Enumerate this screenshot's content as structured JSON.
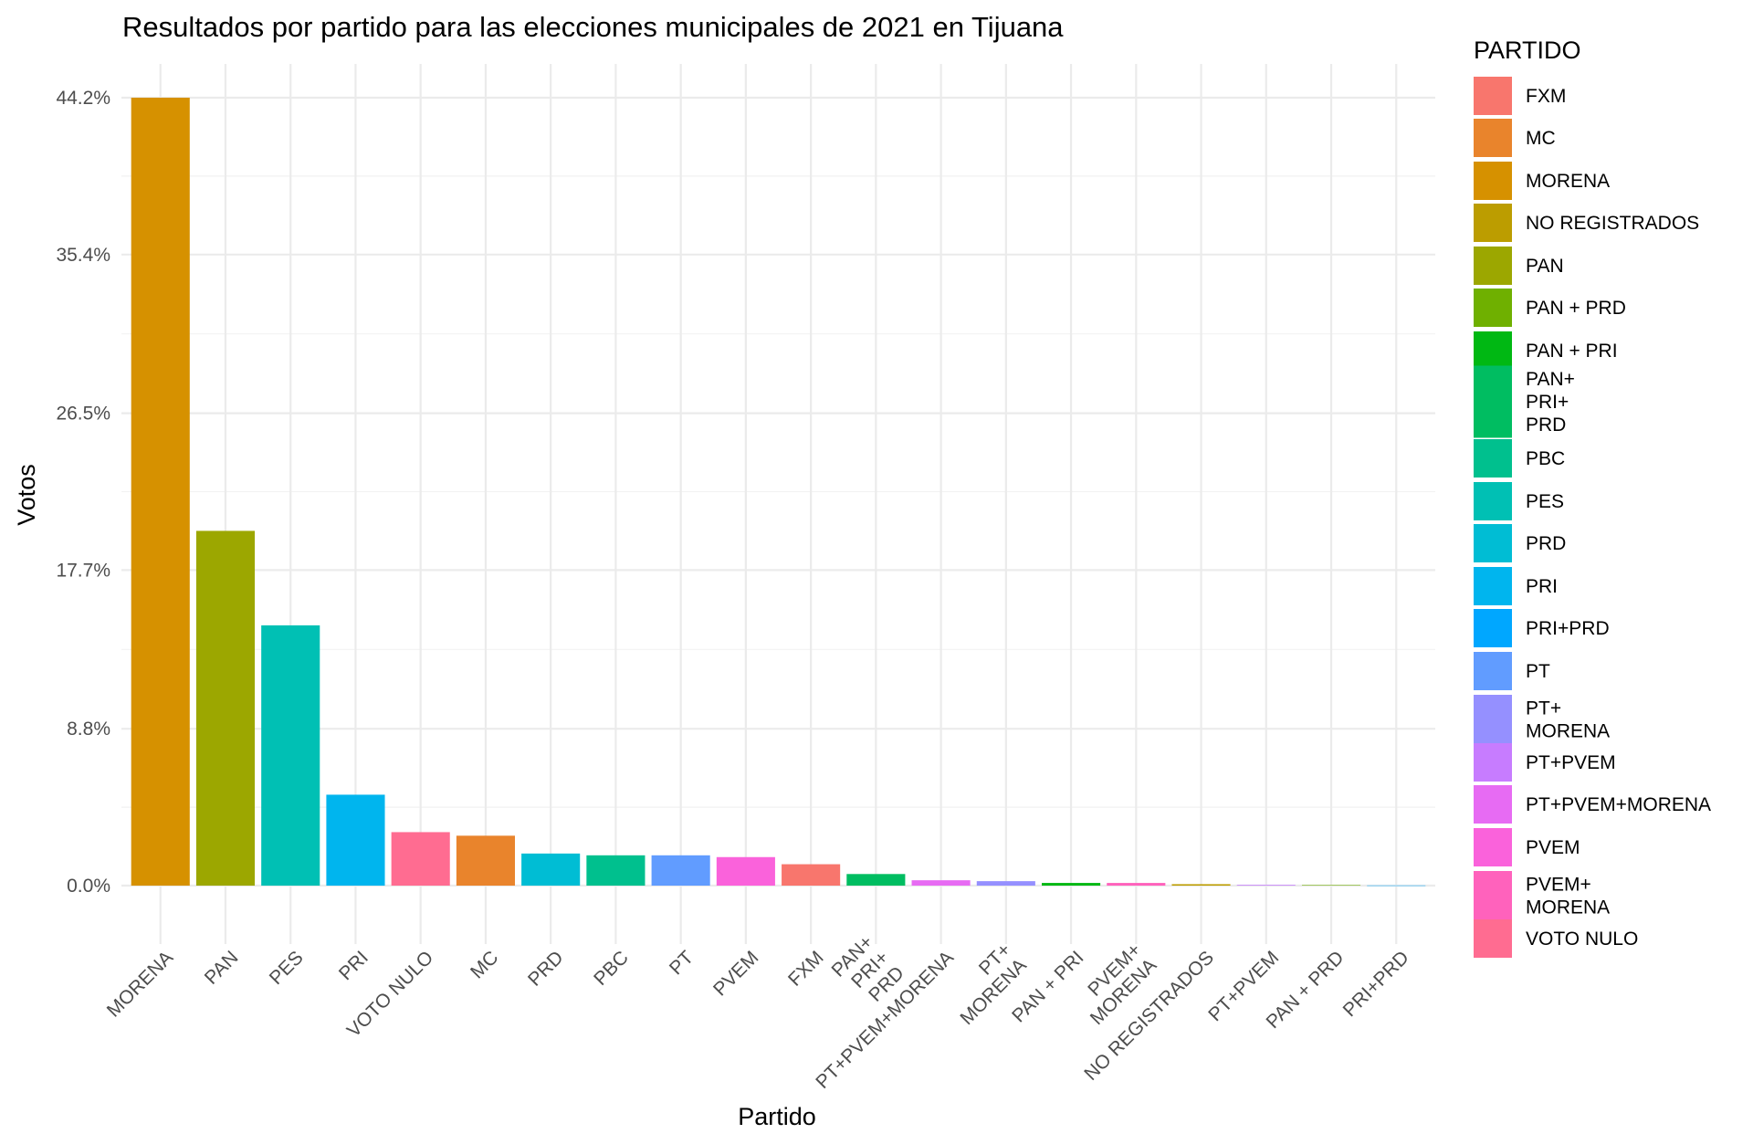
{
  "chart_data": {
    "type": "bar",
    "title": "Resultados por partido para las elecciones municipales de 2021 en Tijuana",
    "xlabel": "Partido",
    "ylabel": "Votos",
    "ylim": [
      0,
      45.5
    ],
    "yticks": [
      {
        "value": 0.0,
        "label": "0.0%"
      },
      {
        "value": 8.8,
        "label": "8.8%"
      },
      {
        "value": 17.7,
        "label": "17.7%"
      },
      {
        "value": 26.5,
        "label": "26.5%"
      },
      {
        "value": 35.4,
        "label": "35.4%"
      },
      {
        "value": 44.2,
        "label": "44.2%"
      }
    ],
    "grid": true,
    "legend_title": "PARTIDO",
    "legend_position": "right",
    "categories": [
      "MORENA",
      "PAN",
      "PES",
      "PRI",
      "VOTO NULO",
      "MC",
      "PRD",
      "PBC",
      "PT",
      "PVEM",
      "FXM",
      "PAN+\nPRI+\nPRD",
      "PT+PVEM+MORENA",
      "PT+\nMORENA",
      "PAN + PRI",
      "PVEM+\nMORENA",
      "NO REGISTRADOS",
      "PT+PVEM",
      "PAN + PRD",
      "PRI+PRD"
    ],
    "values": [
      44.2,
      19.9,
      14.6,
      5.1,
      3.0,
      2.8,
      1.8,
      1.7,
      1.7,
      1.6,
      1.2,
      0.65,
      0.3,
      0.25,
      0.15,
      0.15,
      0.08,
      0.04,
      0.03,
      0.01
    ],
    "legend": [
      {
        "label": "FXM",
        "color": "#F8766D"
      },
      {
        "label": "MC",
        "color": "#E9842C"
      },
      {
        "label": "MORENA",
        "color": "#D69100"
      },
      {
        "label": "NO REGISTRADOS",
        "color": "#BC9D00"
      },
      {
        "label": "PAN",
        "color": "#9CA700"
      },
      {
        "label": "PAN + PRD",
        "color": "#6FB000"
      },
      {
        "label": "PAN + PRI",
        "color": "#00B813"
      },
      {
        "label": "PAN+\nPRI+\nPRD",
        "color": "#00BD61"
      },
      {
        "label": "PBC",
        "color": "#00C08E"
      },
      {
        "label": "PES",
        "color": "#00C0B4"
      },
      {
        "label": "PRD",
        "color": "#00BDD4"
      },
      {
        "label": "PRI",
        "color": "#00B5EE"
      },
      {
        "label": "PRI+PRD",
        "color": "#00A7FF"
      },
      {
        "label": "PT",
        "color": "#619CFF"
      },
      {
        "label": "PT+\nMORENA",
        "color": "#9590FF"
      },
      {
        "label": "PT+PVEM",
        "color": "#C77CFF"
      },
      {
        "label": "PT+PVEM+MORENA",
        "color": "#E76BF3"
      },
      {
        "label": "PVEM",
        "color": "#FA62DB"
      },
      {
        "label": "PVEM+\nMORENA",
        "color": "#FF62BC"
      },
      {
        "label": "VOTO NULO",
        "color": "#FF6C91"
      }
    ]
  }
}
